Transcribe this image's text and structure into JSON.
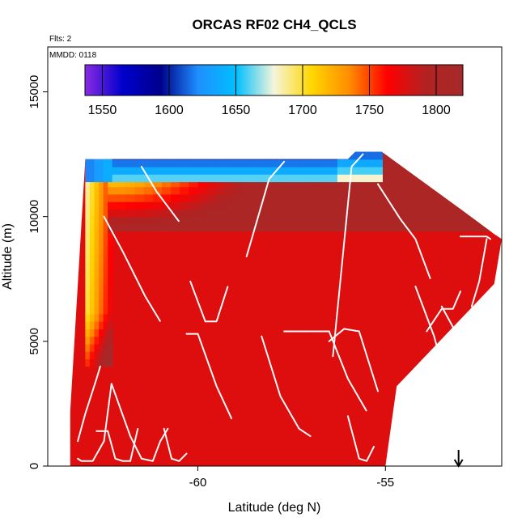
{
  "chart_data": {
    "type": "heatmap",
    "title": "ORCAS RF02 CH4_QCLS",
    "annotations": [
      "Flts: 2",
      "MMDD: 0118"
    ],
    "xlabel": "Latitude (deg N)",
    "ylabel": "Altitude (m)",
    "xlim": [
      -64.0,
      -51.9
    ],
    "ylim": [
      0,
      16800
    ],
    "x_ticks": [
      -60,
      -55
    ],
    "x_tick_labels": [
      "-60",
      "-55"
    ],
    "y_ticks": [
      0,
      5000,
      10000,
      15000
    ],
    "y_tick_labels": [
      "0",
      "5000",
      "10000",
      "15000"
    ],
    "grid": false,
    "colorbar": {
      "placement": "top-inside",
      "range": [
        1537,
        1820
      ],
      "ticks": [
        1550,
        1600,
        1650,
        1700,
        1750,
        1800
      ],
      "tick_labels": [
        "1550",
        "1600",
        "1650",
        "1700",
        "1750",
        "1800"
      ],
      "colors": [
        "#8B2BE2",
        "#0000CD",
        "#00008B",
        "#1E90FF",
        "#00BFFF",
        "#F5F5DC",
        "#FFD700",
        "#FF8C00",
        "#FF0000",
        "#B22222",
        "#A52A2A"
      ]
    },
    "marker": {
      "type": "arrow",
      "latitude": -53.05,
      "direction": "down"
    },
    "ch4_field": {
      "boundary_top_altitude_by_latitude": [
        [
          -63.4,
          2200
        ],
        [
          -63.0,
          12300
        ],
        [
          -56.0,
          12300
        ],
        [
          -55.8,
          12600
        ],
        [
          -55.1,
          12600
        ],
        [
          -53.0,
          10300
        ],
        [
          -52.1,
          9300
        ],
        [
          -51.9,
          9100
        ],
        [
          -52.1,
          7300
        ],
        [
          -54.7,
          3200
        ],
        [
          -55.0,
          0
        ],
        [
          -63.4,
          0
        ]
      ],
      "upper_tropospheric_layer_bottom_altitude": 9400,
      "typical_values": {
        "low_altitude": 1775,
        "upper_layer": 1805,
        "western_edge_column": 1700,
        "top_layer_min": 1585
      }
    },
    "flight_track": [
      {
        "points": [
          [
            -63.2,
            1000
          ],
          [
            -63.0,
            2100
          ],
          [
            -62.7,
            3500
          ],
          [
            -62.6,
            4000
          ]
        ]
      },
      {
        "points": [
          [
            -63.2,
            300
          ],
          [
            -63.1,
            200
          ],
          [
            -62.9,
            200
          ],
          [
            -62.8,
            200
          ],
          [
            -62.5,
            1000
          ],
          [
            -62.3,
            3300
          ]
        ]
      },
      {
        "points": [
          [
            -62.7,
            1400
          ],
          [
            -62.4,
            1400
          ],
          [
            -62.2,
            300
          ],
          [
            -62.0,
            200
          ],
          [
            -61.8,
            200
          ],
          [
            -61.6,
            1500
          ]
        ]
      },
      {
        "points": [
          [
            -62.3,
            3300
          ],
          [
            -61.8,
            1200
          ],
          [
            -61.5,
            300
          ],
          [
            -61.2,
            200
          ],
          [
            -61.0,
            1000
          ],
          [
            -60.8,
            1500
          ]
        ]
      },
      {
        "points": [
          [
            -60.9,
            1500
          ],
          [
            -60.7,
            300
          ],
          [
            -60.5,
            200
          ],
          [
            -60.3,
            500
          ]
        ]
      },
      {
        "points": [
          [
            -62.5,
            10000
          ],
          [
            -62.0,
            8600
          ],
          [
            -61.4,
            6800
          ],
          [
            -61.0,
            5800
          ]
        ]
      },
      {
        "points": [
          [
            -61.5,
            12000
          ],
          [
            -61.1,
            11000
          ],
          [
            -60.5,
            9800
          ]
        ]
      },
      {
        "points": [
          [
            -60.2,
            7400
          ],
          [
            -59.8,
            5800
          ],
          [
            -59.5,
            5800
          ],
          [
            -59.2,
            7200
          ]
        ]
      },
      {
        "points": [
          [
            -60.3,
            5300
          ],
          [
            -60.0,
            5300
          ],
          [
            -59.5,
            3200
          ],
          [
            -59.1,
            1900
          ]
        ]
      },
      {
        "points": [
          [
            -58.7,
            8400
          ],
          [
            -58.1,
            11500
          ],
          [
            -57.7,
            12200
          ]
        ]
      },
      {
        "points": [
          [
            -58.3,
            5200
          ],
          [
            -57.8,
            2800
          ],
          [
            -57.3,
            1500
          ],
          [
            -57.0,
            1200
          ]
        ]
      },
      {
        "points": [
          [
            -56.4,
            4400
          ],
          [
            -55.9,
            12000
          ],
          [
            -55.6,
            12500
          ]
        ]
      },
      {
        "points": [
          [
            -57.7,
            5400
          ],
          [
            -56.5,
            5400
          ],
          [
            -56.0,
            3500
          ],
          [
            -55.5,
            2200
          ]
        ]
      },
      {
        "points": [
          [
            -56.5,
            5000
          ],
          [
            -56.1,
            5500
          ],
          [
            -55.7,
            5400
          ],
          [
            -55.2,
            3000
          ]
        ]
      },
      {
        "points": [
          [
            -56.0,
            2000
          ],
          [
            -55.7,
            300
          ],
          [
            -55.5,
            200
          ],
          [
            -55.3,
            800
          ]
        ]
      },
      {
        "points": [
          [
            -54.2,
            7200
          ],
          [
            -53.7,
            5200
          ],
          [
            -53.4,
            3500
          ],
          [
            -53.3,
            3300
          ]
        ]
      },
      {
        "points": [
          [
            -55.2,
            11300
          ],
          [
            -54.6,
            9900
          ],
          [
            -54.2,
            9100
          ],
          [
            -53.8,
            7500
          ]
        ]
      },
      {
        "points": [
          [
            -53.9,
            5400
          ],
          [
            -53.5,
            6300
          ],
          [
            -53.2,
            6300
          ],
          [
            -53.0,
            7000
          ]
        ]
      },
      {
        "points": [
          [
            -53.5,
            6400
          ],
          [
            -53.1,
            5300
          ],
          [
            -52.8,
            4600
          ],
          [
            -52.6,
            4200
          ]
        ]
      },
      {
        "points": [
          [
            -53.0,
            9200
          ],
          [
            -52.3,
            9200
          ],
          [
            -52.2,
            9100
          ]
        ]
      },
      {
        "points": [
          [
            -52.7,
            6400
          ],
          [
            -52.5,
            7400
          ],
          [
            -52.3,
            9100
          ]
        ]
      }
    ]
  }
}
